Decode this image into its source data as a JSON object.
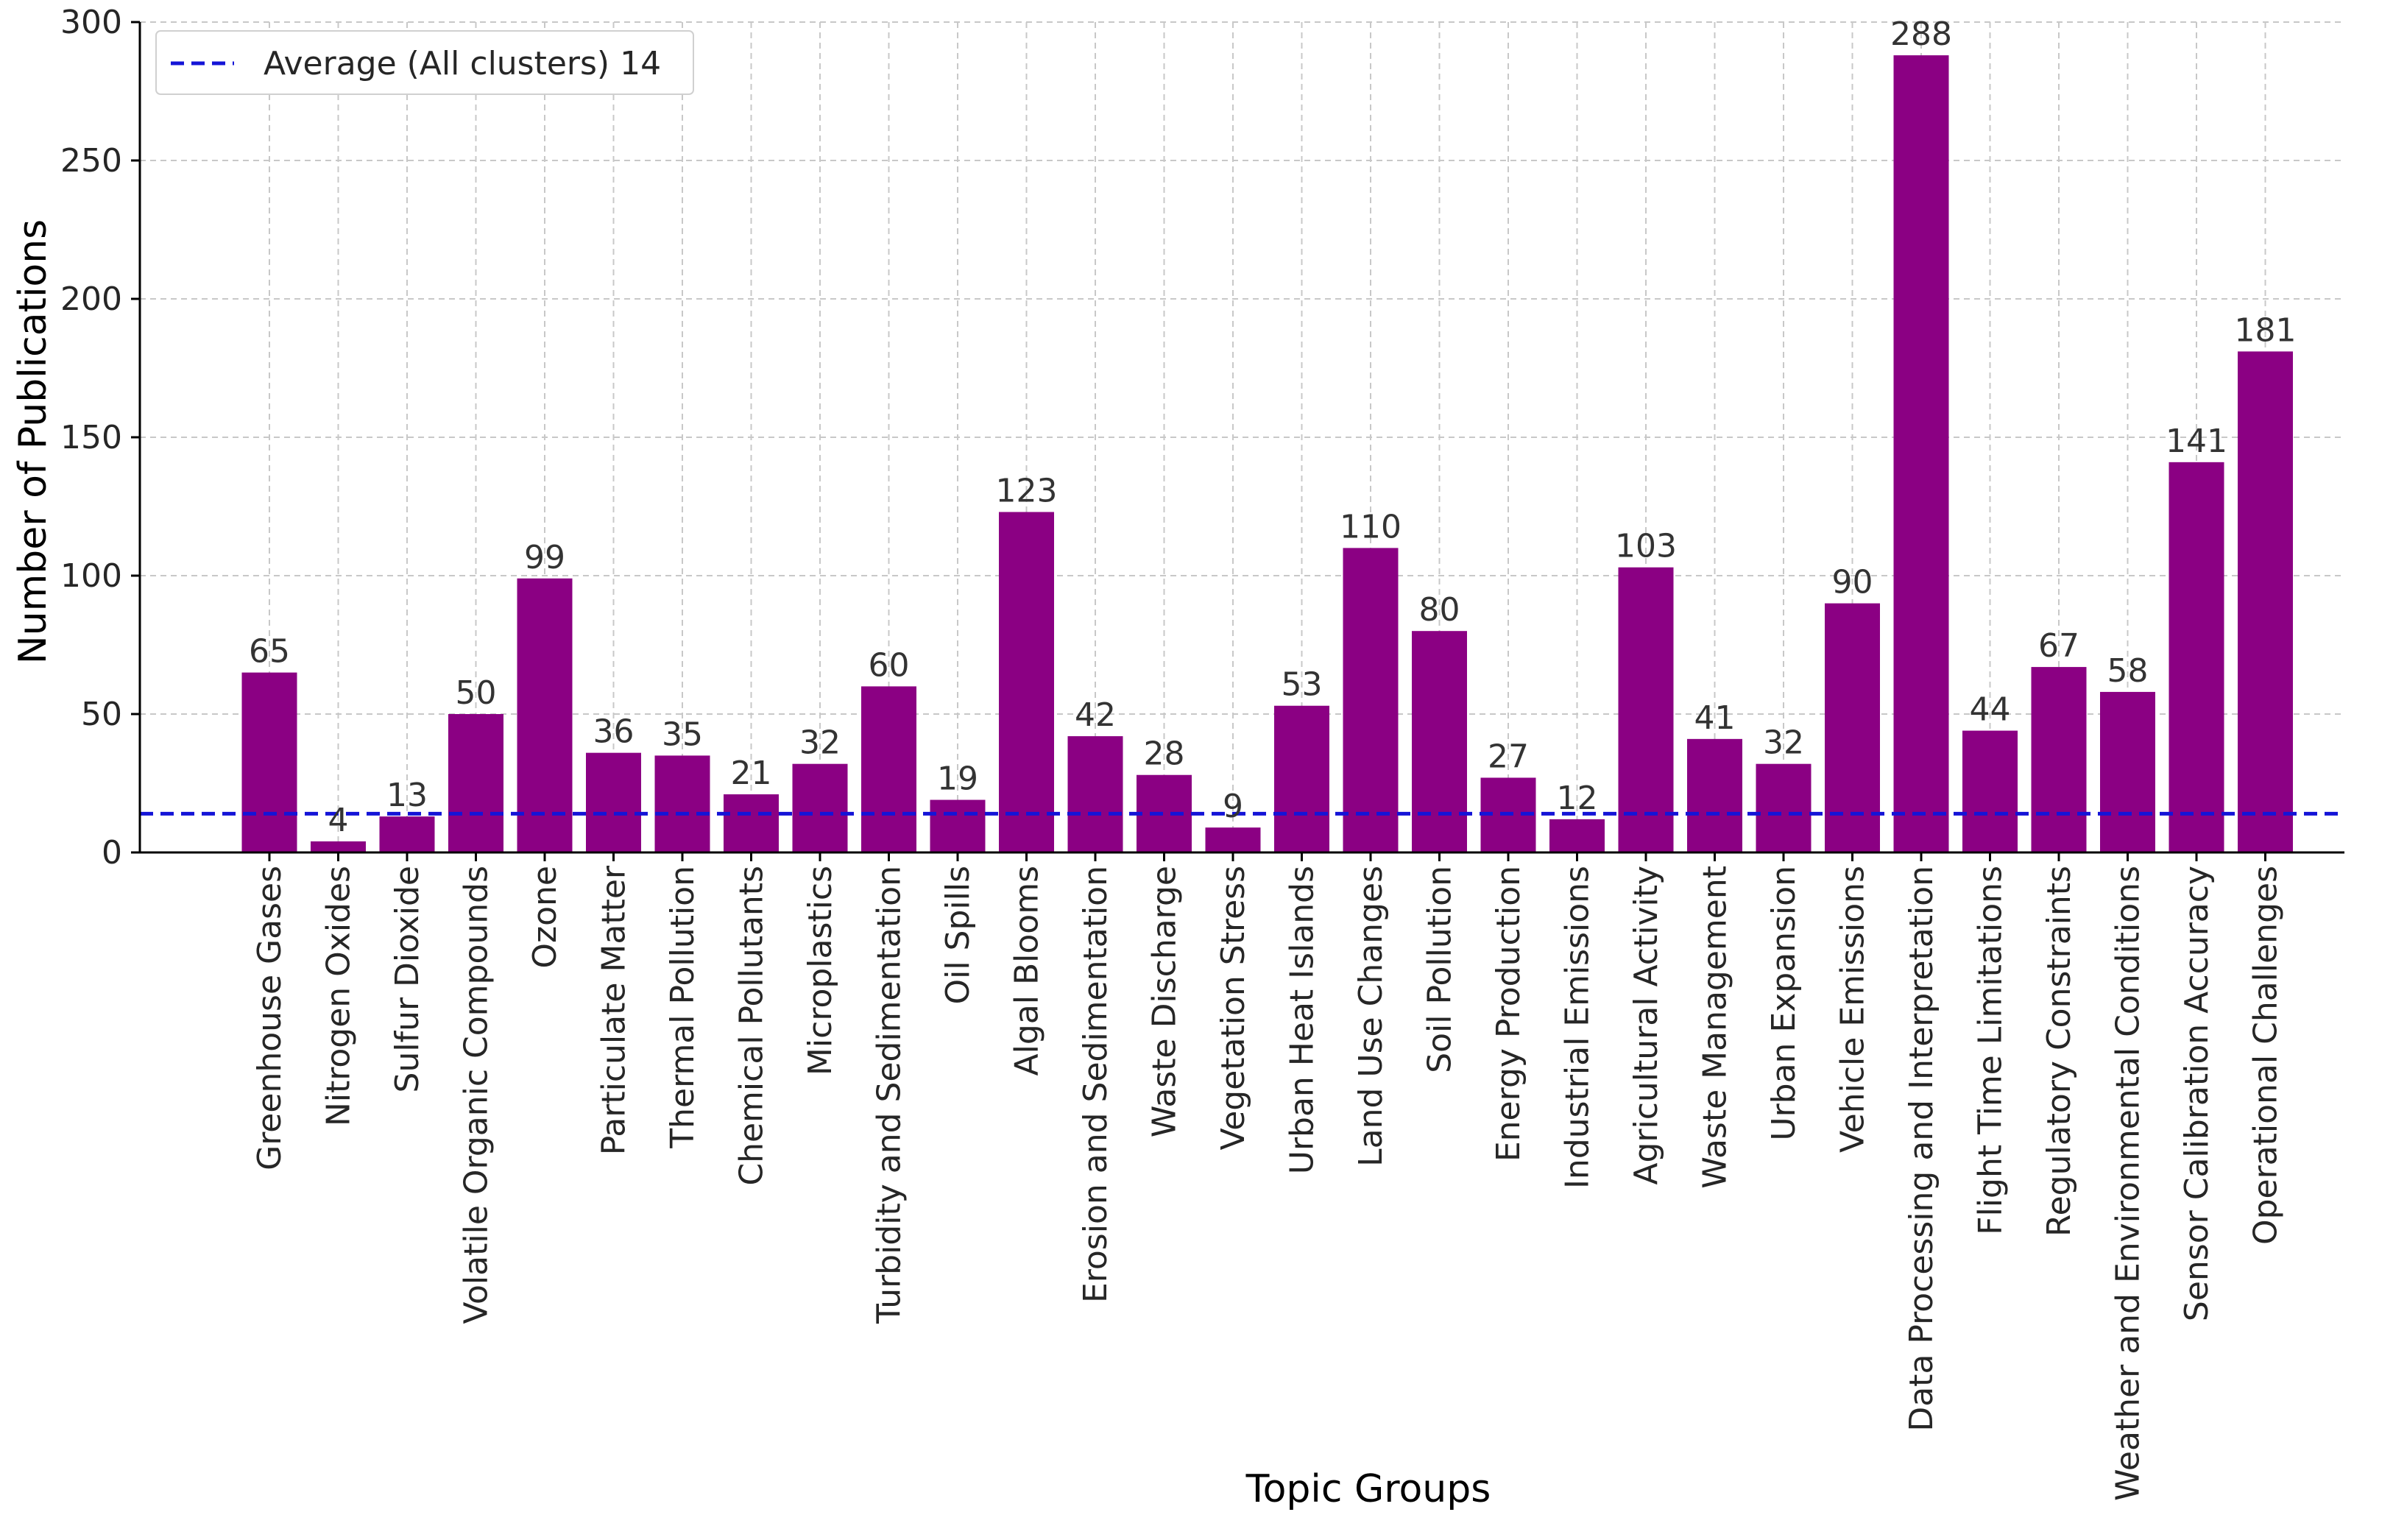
{
  "chart_data": {
    "type": "bar",
    "title": "",
    "xlabel": "Topic Groups",
    "ylabel": "Number of Publications",
    "ylim": [
      0,
      300
    ],
    "yticks": [
      0,
      50,
      100,
      150,
      200,
      250,
      300
    ],
    "grid": true,
    "bar_color": "#8b0083",
    "average_line": {
      "label": "Average (All clusters) 14",
      "value": 14,
      "color": "#1414d7"
    },
    "legend_position": "top-left",
    "categories": [
      "Greenhouse Gases",
      "Nitrogen Oxides",
      "Sulfur Dioxide",
      "Volatile Organic Compounds",
      "Ozone",
      "Particulate Matter",
      "Thermal Pollution",
      "Chemical Pollutants",
      "Microplastics",
      "Turbidity and Sedimentation",
      "Oil Spills",
      "Algal Blooms",
      "Erosion and Sedimentation",
      "Waste Discharge",
      "Vegetation Stress",
      "Urban Heat Islands",
      "Land Use Changes",
      "Soil Pollution",
      "Energy Production",
      "Industrial Emissions",
      "Agricultural Activity",
      "Waste Management",
      "Urban Expansion",
      "Vehicle Emissions",
      "Data Processing and Interpretation",
      "Flight Time Limitations",
      "Regulatory Constraints",
      "Weather and Environmental Conditions",
      "Sensor Calibration Accuracy",
      "Operational Challenges"
    ],
    "values": [
      65,
      4,
      13,
      50,
      99,
      36,
      35,
      21,
      32,
      60,
      19,
      123,
      42,
      28,
      9,
      53,
      110,
      80,
      27,
      12,
      103,
      41,
      32,
      90,
      288,
      44,
      67,
      58,
      141,
      181
    ]
  }
}
